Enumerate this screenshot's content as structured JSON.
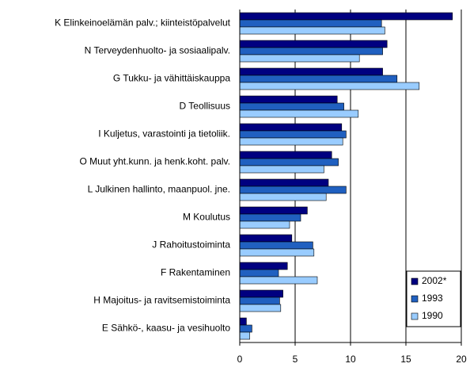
{
  "chart_data": {
    "type": "hbar",
    "categories": [
      "K Elinkeinoelämän palv.;  kiinteistöpalvelut",
      "N Terveydenhuolto- ja sosiaalipalv.",
      "G Tukku- ja vähittäiskauppa",
      "D Teollisuus",
      "I Kuljetus, varastointi ja tietoliik.",
      "O Muut yht.kunn. ja henk.koht. palv.",
      "L Julkinen hallinto, maanpuol. jne.",
      "M Koulutus",
      "J Rahoitustoiminta",
      "F Rakentaminen",
      "H Majoitus- ja ravitsemistoiminta",
      "E Sähkö-, kaasu- ja vesihuolto"
    ],
    "series": [
      {
        "name": "2002*",
        "color": "#000080",
        "values": [
          19.2,
          13.3,
          12.9,
          8.8,
          9.2,
          8.3,
          8.0,
          6.1,
          4.7,
          4.3,
          3.9,
          0.6
        ]
      },
      {
        "name": "1993",
        "color": "#2060c0",
        "values": [
          12.8,
          12.9,
          14.2,
          9.4,
          9.6,
          8.9,
          9.6,
          5.5,
          6.6,
          3.5,
          3.6,
          1.1
        ]
      },
      {
        "name": "1990",
        "color": "#99ccff",
        "values": [
          13.1,
          10.8,
          16.2,
          10.7,
          9.3,
          7.6,
          7.8,
          4.5,
          6.7,
          7.0,
          3.7,
          0.9
        ]
      }
    ],
    "xlim": [
      0,
      20
    ],
    "xticks": [
      0,
      5,
      10,
      15,
      20
    ],
    "grid": true,
    "legend": "lower right"
  }
}
